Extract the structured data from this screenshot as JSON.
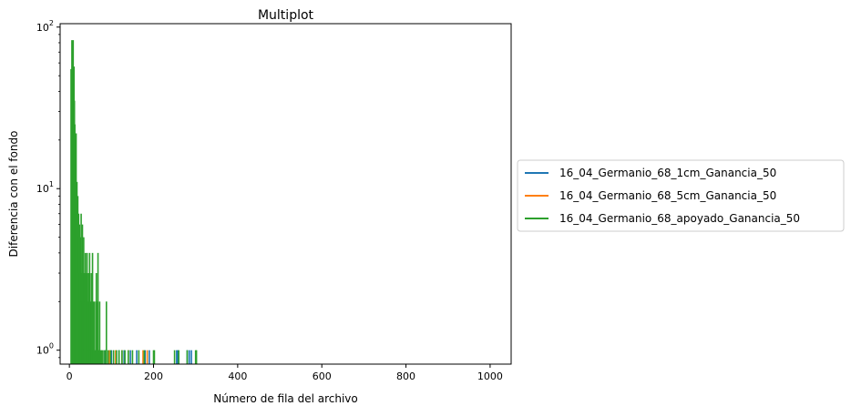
{
  "chart_data": {
    "type": "line",
    "title": "Multiplot",
    "xlabel": "Número de fila del archivo",
    "ylabel": "Diferencia con el fondo",
    "xlim": [
      -22,
      1050
    ],
    "ylim": [
      0.82,
      105
    ],
    "yscale": "log",
    "grid": false,
    "legend_position": "outside-right",
    "x_ticks": [
      {
        "value": 0,
        "label": "0"
      },
      {
        "value": 200,
        "label": "200"
      },
      {
        "value": 400,
        "label": "400"
      },
      {
        "value": 600,
        "label": "600"
      },
      {
        "value": 800,
        "label": "800"
      },
      {
        "value": 1000,
        "label": "1000"
      }
    ],
    "y_ticks": [
      {
        "value": 1,
        "label": "10⁰",
        "base": "10",
        "exp": "0"
      },
      {
        "value": 10,
        "label": "10¹",
        "base": "10",
        "exp": "1"
      },
      {
        "value": 100,
        "label": "10²",
        "base": "10",
        "exp": "2"
      }
    ],
    "series": [
      {
        "name": "16_04_Germanio_68_1cm_Ganancia_50",
        "color": "#1f77b4",
        "draw": "spikes",
        "points": [
          [
            8,
            50
          ],
          [
            12,
            30
          ],
          [
            15,
            10
          ],
          [
            18,
            6
          ],
          [
            21,
            3
          ],
          [
            24,
            2
          ],
          [
            27,
            3
          ],
          [
            30,
            2
          ],
          [
            35,
            1
          ],
          [
            40,
            2
          ],
          [
            45,
            1
          ],
          [
            52,
            1
          ],
          [
            60,
            1
          ],
          [
            72,
            1
          ],
          [
            85,
            1
          ],
          [
            100,
            1
          ],
          [
            118,
            1
          ],
          [
            130,
            1
          ],
          [
            145,
            1
          ],
          [
            160,
            1
          ],
          [
            180,
            1
          ],
          [
            190,
            1
          ],
          [
            255,
            1
          ],
          [
            258,
            1
          ],
          [
            280,
            1
          ],
          [
            285,
            1
          ],
          [
            290,
            1
          ]
        ]
      },
      {
        "name": "16_04_Germanio_68_5cm_Ganancia_50",
        "color": "#ff7f0e",
        "draw": "spikes",
        "points": [
          [
            6,
            8
          ],
          [
            10,
            4
          ],
          [
            14,
            2
          ],
          [
            18,
            3
          ],
          [
            22,
            1
          ],
          [
            26,
            2
          ],
          [
            32,
            1
          ],
          [
            38,
            1
          ],
          [
            48,
            1
          ],
          [
            58,
            1
          ],
          [
            70,
            1
          ],
          [
            95,
            1
          ],
          [
            110,
            1
          ],
          [
            125,
            1
          ],
          [
            140,
            1
          ],
          [
            175,
            1
          ],
          [
            185,
            1
          ]
        ]
      },
      {
        "name": "16_04_Germanio_68_apoyado_Ganancia_50",
        "color": "#2ca02c",
        "draw": "spikes",
        "points": [
          [
            4,
            55
          ],
          [
            6,
            83
          ],
          [
            7,
            70
          ],
          [
            9,
            83
          ],
          [
            10,
            45
          ],
          [
            11,
            57
          ],
          [
            12,
            35
          ],
          [
            13,
            25
          ],
          [
            14,
            10
          ],
          [
            15,
            20
          ],
          [
            16,
            22
          ],
          [
            17,
            8
          ],
          [
            18,
            11
          ],
          [
            19,
            5
          ],
          [
            20,
            9
          ],
          [
            21,
            4
          ],
          [
            22,
            7
          ],
          [
            23,
            2
          ],
          [
            24,
            6
          ],
          [
            25,
            3
          ],
          [
            26,
            5
          ],
          [
            27,
            2
          ],
          [
            28,
            7
          ],
          [
            29,
            3
          ],
          [
            30,
            2
          ],
          [
            31,
            6
          ],
          [
            32,
            3
          ],
          [
            33,
            2
          ],
          [
            34,
            5
          ],
          [
            35,
            1
          ],
          [
            36,
            3
          ],
          [
            37,
            2
          ],
          [
            38,
            4
          ],
          [
            39,
            1
          ],
          [
            40,
            3
          ],
          [
            41,
            2
          ],
          [
            42,
            4
          ],
          [
            43,
            1
          ],
          [
            44,
            2
          ],
          [
            45,
            3
          ],
          [
            46,
            1
          ],
          [
            47,
            2
          ],
          [
            48,
            4
          ],
          [
            49,
            1
          ],
          [
            50,
            2
          ],
          [
            51,
            1
          ],
          [
            52,
            3
          ],
          [
            53,
            2
          ],
          [
            55,
            4
          ],
          [
            56,
            1
          ],
          [
            57,
            2
          ],
          [
            58,
            1
          ],
          [
            60,
            2
          ],
          [
            62,
            1
          ],
          [
            64,
            3
          ],
          [
            66,
            2
          ],
          [
            68,
            4
          ],
          [
            70,
            1
          ],
          [
            72,
            2
          ],
          [
            75,
            1
          ],
          [
            78,
            1
          ],
          [
            82,
            1
          ],
          [
            86,
            1
          ],
          [
            88,
            2
          ],
          [
            92,
            1
          ],
          [
            98,
            1
          ],
          [
            105,
            1
          ],
          [
            112,
            1
          ],
          [
            118,
            1
          ],
          [
            125,
            1
          ],
          [
            132,
            1
          ],
          [
            140,
            1
          ],
          [
            150,
            1
          ],
          [
            165,
            1
          ],
          [
            178,
            1
          ],
          [
            200,
            1
          ],
          [
            202,
            1
          ],
          [
            250,
            1
          ],
          [
            260,
            1
          ],
          [
            280,
            1
          ],
          [
            300,
            1
          ],
          [
            302,
            1
          ]
        ]
      }
    ]
  }
}
